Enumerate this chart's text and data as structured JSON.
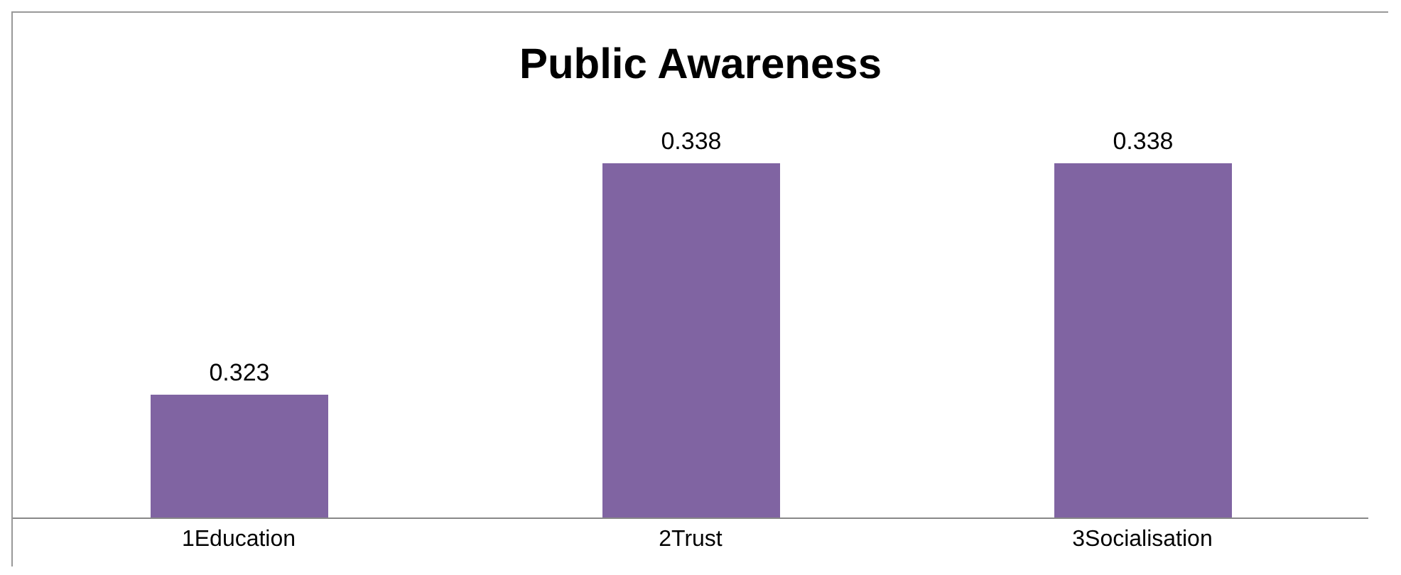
{
  "chart_data": {
    "type": "bar",
    "title": "Public Awareness",
    "categories": [
      "1Education",
      "2Trust",
      "3Socialisation"
    ],
    "values": [
      0.323,
      0.338,
      0.338
    ],
    "color": "#8064a2",
    "ylim": [
      0.315,
      0.338
    ],
    "tick_labels": "x",
    "data_labels": true,
    "grid": false,
    "legend": false
  }
}
